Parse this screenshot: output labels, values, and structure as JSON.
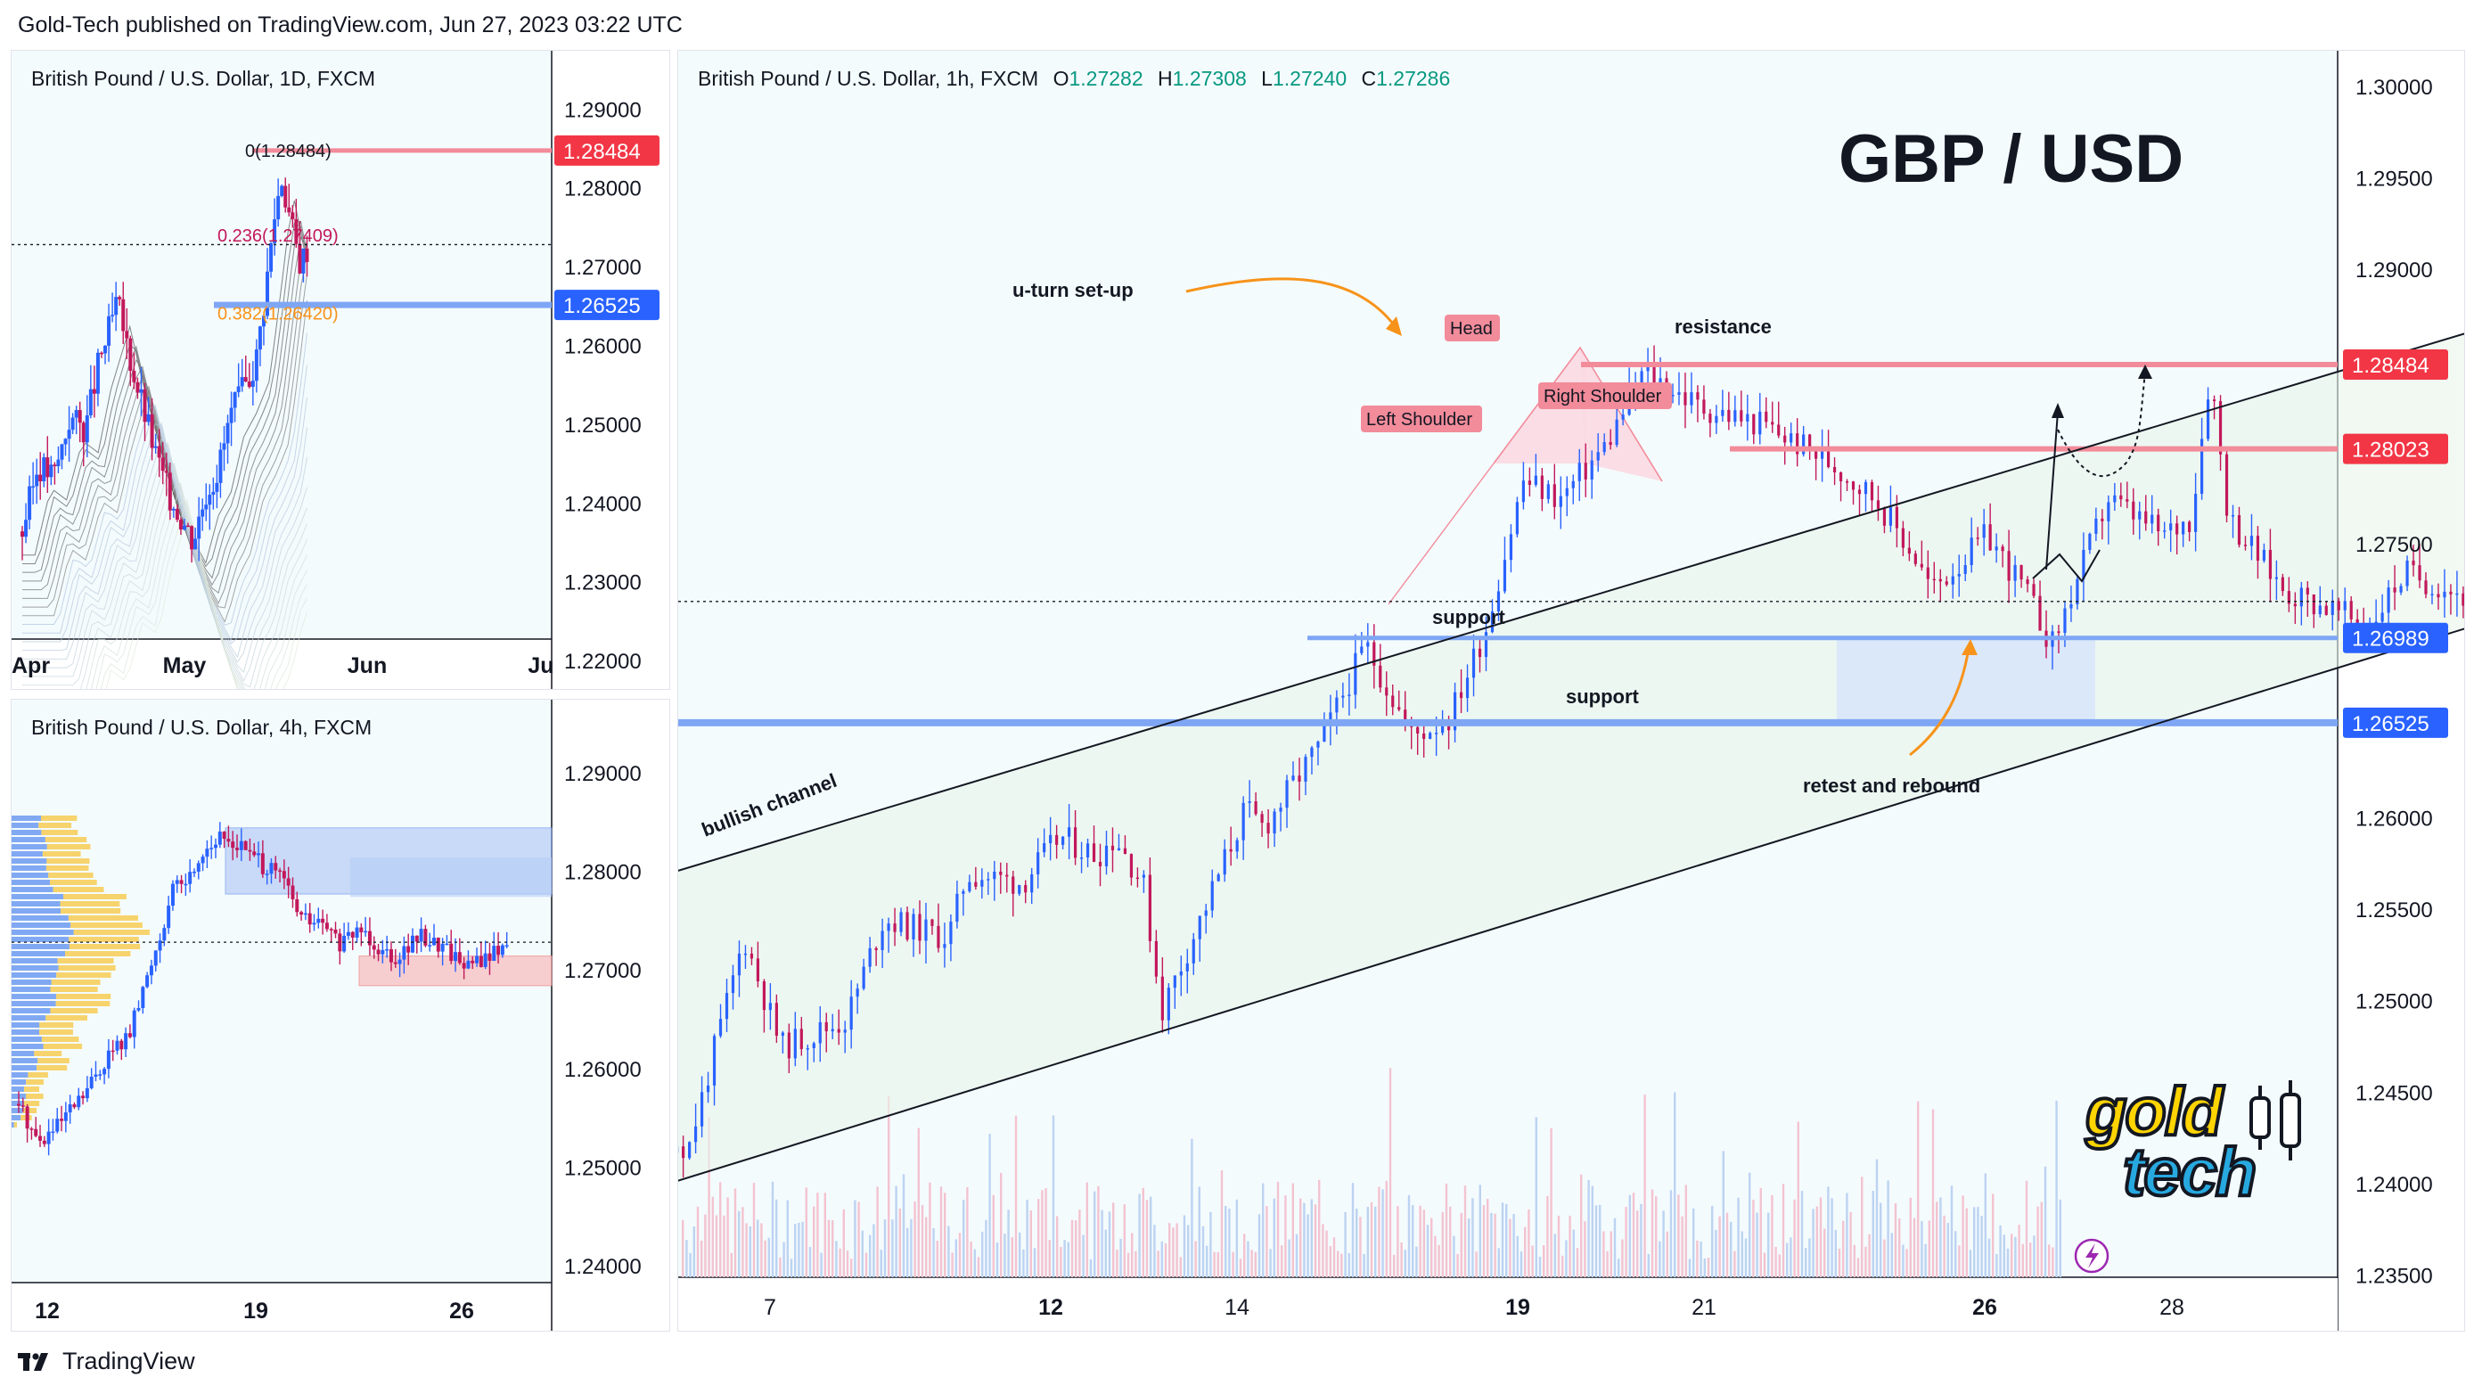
{
  "header": "Gold-Tech published on TradingView.com, Jun 27, 2023 03:22 UTC",
  "footer": {
    "brand": "TradingView"
  },
  "colors": {
    "up": "#2962ff",
    "down": "#c2185b",
    "resistance": "#f28b9a",
    "support": "#7ea6f5",
    "resistance_badge": "#f23645",
    "support_badge": "#2962ff",
    "annotation": "#f7931a"
  },
  "main_chart": {
    "title": {
      "pair": "British Pound / U.S. Dollar, 1h, FXCM",
      "o_label": "O",
      "o": "1.27282",
      "h_label": "H",
      "h": "1.27308",
      "l_label": "L",
      "l": "1.27240",
      "c_label": "C",
      "c": "1.27286"
    },
    "big_title": "GBP / USD",
    "y_ticks": [
      "1.30000",
      "1.29500",
      "1.29000",
      "1.28500",
      "1.28000",
      "1.27500",
      "1.27000",
      "1.26500",
      "1.26000",
      "1.25500",
      "1.25000",
      "1.24500",
      "1.24000",
      "1.23500"
    ],
    "x_ticks": [
      "7",
      "12",
      "14",
      "19",
      "21",
      "26",
      "28"
    ],
    "badges": [
      "1.28484",
      "1.28023",
      "1.26989",
      "1.26525"
    ],
    "annotations": {
      "uturn": "u-turn set-up",
      "head": "Head",
      "left_shoulder": "Left Shoulder",
      "right_shoulder": "Right Shoulder",
      "resistance": "resistance",
      "support1": "support",
      "support2": "support",
      "channel": "bullish channel",
      "retest": "retest and rebound"
    }
  },
  "daily_chart": {
    "title": "British Pound / U.S. Dollar, 1D, FXCM",
    "y_ticks": [
      "1.29000",
      "1.28000",
      "1.27000",
      "1.26000",
      "1.25000",
      "1.24000",
      "1.23000",
      "1.22000"
    ],
    "x_ticks": [
      "Apr",
      "May",
      "Jun",
      "Ju"
    ],
    "badges": [
      "1.28484",
      "1.26525"
    ],
    "fib": {
      "f0": "0(1.28484)",
      "f236": "0.236(1.27409)",
      "f382": "0.382(1.26420)"
    }
  },
  "h4_chart": {
    "title": "British Pound / U.S. Dollar, 4h, FXCM",
    "y_ticks": [
      "1.29000",
      "1.28000",
      "1.27000",
      "1.26000",
      "1.25000",
      "1.24000"
    ],
    "x_ticks": [
      "12",
      "19",
      "26"
    ]
  },
  "chart_data": [
    {
      "type": "candlestick",
      "title": "British Pound / U.S. Dollar, 1h, FXCM",
      "ylim": [
        1.232,
        1.302
      ],
      "x_range": [
        6.0,
        30.0
      ],
      "path": [
        [
          6.0,
          1.2445
        ],
        [
          6.6,
          1.2395
        ],
        [
          7.2,
          1.243
        ],
        [
          7.6,
          1.242
        ],
        [
          8.2,
          1.2535
        ],
        [
          8.6,
          1.2475
        ],
        [
          9.3,
          1.249
        ],
        [
          9.7,
          1.2545
        ],
        [
          10.4,
          1.2535
        ],
        [
          10.6,
          1.257
        ],
        [
          11.2,
          1.2565
        ],
        [
          11.6,
          1.259
        ],
        [
          12.0,
          1.258
        ],
        [
          12.2,
          1.259
        ],
        [
          12.5,
          1.2565
        ],
        [
          12.7,
          1.2495
        ],
        [
          13.2,
          1.2555
        ],
        [
          13.6,
          1.2605
        ],
        [
          13.8,
          1.2595
        ],
        [
          14.4,
          1.264
        ],
        [
          14.9,
          1.2695
        ],
        [
          15.4,
          1.2645
        ],
        [
          15.8,
          1.2655
        ],
        [
          16.2,
          1.2705
        ],
        [
          16.6,
          1.2785
        ],
        [
          17.0,
          1.2775
        ],
        [
          17.5,
          1.2805
        ],
        [
          17.9,
          1.2845
        ],
        [
          18.5,
          1.2825
        ],
        [
          19.2,
          1.2815
        ],
        [
          19.9,
          1.2795
        ],
        [
          20.4,
          1.2775
        ],
        [
          20.8,
          1.2745
        ],
        [
          21.0,
          1.2725
        ],
        [
          21.6,
          1.2755
        ],
        [
          22.0,
          1.2725
        ],
        [
          22.3,
          1.2695
        ],
        [
          22.9,
          1.2775
        ],
        [
          23.5,
          1.2755
        ],
        [
          23.8,
          1.2765
        ],
        [
          24.0,
          1.2845
        ],
        [
          24.2,
          1.2765
        ],
        [
          24.8,
          1.2725
        ],
        [
          25.3,
          1.2715
        ],
        [
          25.7,
          1.2705
        ],
        [
          26.1,
          1.2735
        ],
        [
          26.6,
          1.2725
        ],
        [
          27.0,
          1.2715
        ],
        [
          27.4,
          1.2728
        ]
      ],
      "levels": {
        "resistance": [
          1.28484,
          1.28023
        ],
        "support": [
          1.26989,
          1.26525
        ]
      },
      "channel": {
        "upper": [
          [
            6.4,
            1.2555
          ],
          [
            30.0,
            1.2915
          ]
        ],
        "lower": [
          [
            6.4,
            1.2385
          ],
          [
            30.0,
            1.2755
          ]
        ]
      },
      "projection": [
        [
          27.4,
          1.2728
        ],
        [
          27.7,
          1.2802
        ],
        [
          28.2,
          1.2768
        ],
        [
          29.0,
          1.2845
        ]
      ],
      "last_price": 1.27286
    },
    {
      "type": "candlestick",
      "title": "British Pound / U.S. Dollar, 1D, FXCM",
      "ylim": [
        1.2165,
        1.2975
      ],
      "path": [
        [
          0,
          1.2365
        ],
        [
          5,
          1.245
        ],
        [
          10,
          1.2435
        ],
        [
          15,
          1.251
        ],
        [
          20,
          1.2495
        ],
        [
          24,
          1.2575
        ],
        [
          27,
          1.2615
        ],
        [
          30,
          1.2655
        ],
        [
          34,
          1.2585
        ],
        [
          38,
          1.2525
        ],
        [
          42,
          1.2465
        ],
        [
          46,
          1.2415
        ],
        [
          50,
          1.2385
        ],
        [
          54,
          1.2355
        ],
        [
          58,
          1.2415
        ],
        [
          62,
          1.2445
        ],
        [
          66,
          1.2515
        ],
        [
          70,
          1.2545
        ],
        [
          74,
          1.2585
        ],
        [
          77,
          1.2675
        ],
        [
          80,
          1.2775
        ],
        [
          82,
          1.2815
        ],
        [
          84,
          1.2775
        ],
        [
          86,
          1.2735
        ],
        [
          88,
          1.2705
        ],
        [
          90,
          1.2725
        ]
      ],
      "levels": {
        "resistance": [
          1.28484
        ],
        "support": [
          1.26525
        ]
      },
      "fib_levels": [
        1.28484,
        1.27409,
        1.2642
      ]
    },
    {
      "type": "candlestick",
      "title": "British Pound / U.S. Dollar, 4h, FXCM",
      "ylim": [
        1.2335,
        1.2975
      ],
      "x_range": [
        10.8,
        30.0
      ],
      "path": [
        [
          10.8,
          1.2565
        ],
        [
          11.5,
          1.2525
        ],
        [
          12.2,
          1.2545
        ],
        [
          13.0,
          1.2575
        ],
        [
          13.8,
          1.2615
        ],
        [
          14.5,
          1.2635
        ],
        [
          15.2,
          1.2705
        ],
        [
          15.6,
          1.2745
        ],
        [
          16.0,
          1.2785
        ],
        [
          16.5,
          1.2795
        ],
        [
          17.0,
          1.2825
        ],
        [
          17.6,
          1.2835
        ],
        [
          18.3,
          1.2825
        ],
        [
          19.0,
          1.2805
        ],
        [
          19.6,
          1.2795
        ],
        [
          20.2,
          1.2755
        ],
        [
          21.0,
          1.2745
        ],
        [
          21.6,
          1.2725
        ],
        [
          22.2,
          1.2745
        ],
        [
          22.8,
          1.2725
        ],
        [
          23.4,
          1.2715
        ],
        [
          24.2,
          1.2735
        ],
        [
          25.0,
          1.2725
        ],
        [
          25.8,
          1.2705
        ],
        [
          26.5,
          1.2715
        ],
        [
          27.1,
          1.2728
        ]
      ],
      "zones": {
        "supply": [
          1.2805,
          1.2845
        ],
        "demand": [
          1.2685,
          1.2715
        ]
      }
    }
  ]
}
